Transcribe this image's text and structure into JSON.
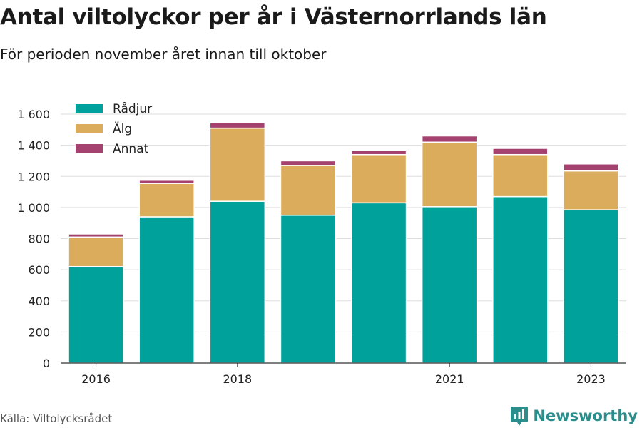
{
  "header": {
    "title": "Antal viltolyckor per år i Västernorrlands län",
    "subtitle": "För perioden november året innan till oktober"
  },
  "footer": {
    "source": "Källa: Viltolycksrådet",
    "brand": "Newsworthy"
  },
  "colors": {
    "Rådjur": "#00a19a",
    "Älg": "#dbac5b",
    "Annat": "#a4416e",
    "grid": "#dddddd",
    "axis": "#333333",
    "brand": "#2a8f8c"
  },
  "chart_data": {
    "type": "bar",
    "stacked": true,
    "categories": [
      "2016",
      "2017",
      "2018",
      "2019",
      "2020",
      "2021",
      "2022",
      "2023"
    ],
    "x_tick_labels": [
      "2016",
      "",
      "2018",
      "",
      "",
      "2021",
      "",
      "2023"
    ],
    "series": [
      {
        "name": "Rådjur",
        "values": [
          620,
          940,
          1040,
          950,
          1030,
          1005,
          1070,
          985
        ]
      },
      {
        "name": "Älg",
        "values": [
          190,
          215,
          470,
          320,
          310,
          415,
          270,
          250
        ]
      },
      {
        "name": "Annat",
        "values": [
          20,
          20,
          35,
          30,
          25,
          40,
          40,
          45
        ]
      }
    ],
    "ylim": [
      0,
      1600
    ],
    "y_ticks": [
      0,
      200,
      400,
      600,
      800,
      1000,
      1200,
      1400,
      1600
    ],
    "y_tick_labels": [
      "0",
      "200",
      "400",
      "600",
      "800",
      "1 000",
      "1 200",
      "1 400",
      "1 600"
    ],
    "grid": true,
    "legend_position": "top-left"
  }
}
